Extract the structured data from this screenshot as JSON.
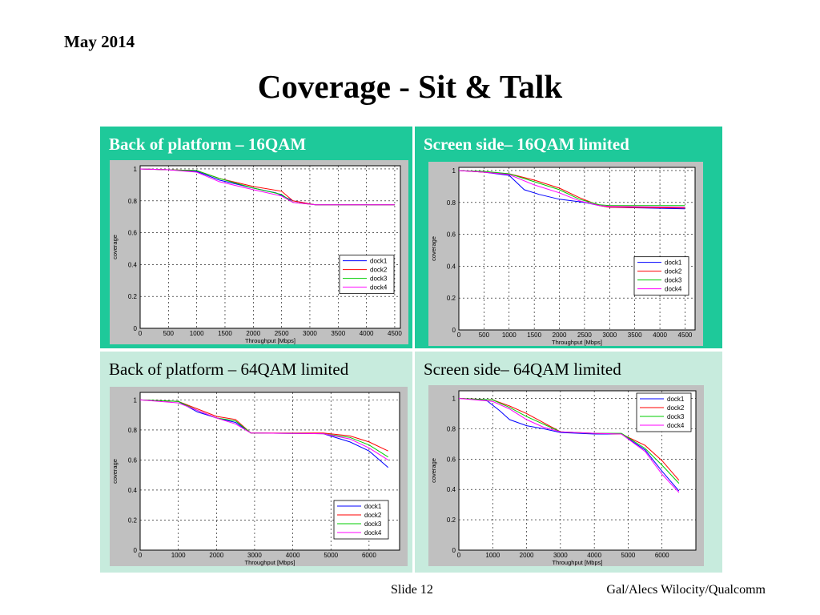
{
  "header": {
    "date": "May 2014",
    "title": "Coverage  - Sit & Talk"
  },
  "footer": {
    "slide": "Slide 12",
    "author": "Gal/Alecs Wilocity/Qualcomm"
  },
  "colors": {
    "panel_dark": "#1ec99a",
    "panel_light": "#c7ebdd",
    "dock1": "#0000ff",
    "dock2": "#ff0000",
    "dock3": "#00cc00",
    "dock4": "#ff00ff"
  },
  "chart_data": [
    {
      "type": "line",
      "panel_label": "Back of platform – 16QAM",
      "xlabel": "Throughput [Mbps]",
      "ylabel": "coverage",
      "xlim": [
        0,
        4600
      ],
      "ylim": [
        0,
        1.02
      ],
      "xticks": [
        0,
        500,
        1000,
        1500,
        2000,
        2500,
        3000,
        3500,
        4000,
        4500
      ],
      "yticks": [
        0,
        0.2,
        0.4,
        0.6,
        0.8,
        1
      ],
      "grid": true,
      "legend": "center-right",
      "series": [
        {
          "name": "dock1",
          "color": "#0000ff",
          "points": [
            [
              0,
              1
            ],
            [
              500,
              0.995
            ],
            [
              1000,
              0.985
            ],
            [
              1400,
              0.93
            ],
            [
              2000,
              0.88
            ],
            [
              2400,
              0.85
            ],
            [
              2700,
              0.8
            ],
            [
              3100,
              0.775
            ],
            [
              4500,
              0.775
            ]
          ]
        },
        {
          "name": "dock2",
          "color": "#ff0000",
          "points": [
            [
              0,
              1
            ],
            [
              500,
              0.995
            ],
            [
              1000,
              0.99
            ],
            [
              1400,
              0.94
            ],
            [
              2000,
              0.89
            ],
            [
              2500,
              0.86
            ],
            [
              2700,
              0.8
            ],
            [
              3100,
              0.775
            ],
            [
              4500,
              0.775
            ]
          ]
        },
        {
          "name": "dock3",
          "color": "#00cc00",
          "points": [
            [
              0,
              1
            ],
            [
              500,
              0.995
            ],
            [
              1000,
              0.99
            ],
            [
              1400,
              0.94
            ],
            [
              2000,
              0.88
            ],
            [
              2500,
              0.84
            ],
            [
              2700,
              0.79
            ],
            [
              3100,
              0.775
            ],
            [
              4500,
              0.775
            ]
          ]
        },
        {
          "name": "dock4",
          "color": "#ff00ff",
          "points": [
            [
              0,
              1
            ],
            [
              500,
              0.995
            ],
            [
              1000,
              0.98
            ],
            [
              1400,
              0.92
            ],
            [
              2000,
              0.87
            ],
            [
              2500,
              0.83
            ],
            [
              2700,
              0.79
            ],
            [
              3100,
              0.775
            ],
            [
              4500,
              0.775
            ]
          ]
        }
      ]
    },
    {
      "type": "line",
      "panel_label": "Screen side– 16QAM limited",
      "xlabel": "Throughput [Mbps]",
      "ylabel": "coverage",
      "xlim": [
        0,
        4700
      ],
      "ylim": [
        0,
        1.02
      ],
      "xticks": [
        0,
        500,
        1000,
        1500,
        2000,
        2500,
        3000,
        3500,
        4000,
        4500
      ],
      "yticks": [
        0,
        0.2,
        0.4,
        0.6,
        0.8,
        1
      ],
      "grid": true,
      "legend": "center-right",
      "series": [
        {
          "name": "dock1",
          "color": "#0000ff",
          "points": [
            [
              0,
              1
            ],
            [
              500,
              0.99
            ],
            [
              1000,
              0.97
            ],
            [
              1300,
              0.88
            ],
            [
              1600,
              0.85
            ],
            [
              2000,
              0.82
            ],
            [
              2500,
              0.8
            ],
            [
              2800,
              0.78
            ],
            [
              3000,
              0.77
            ],
            [
              4500,
              0.76
            ]
          ]
        },
        {
          "name": "dock2",
          "color": "#ff0000",
          "points": [
            [
              0,
              1
            ],
            [
              500,
              0.99
            ],
            [
              1000,
              0.98
            ],
            [
              1500,
              0.94
            ],
            [
              2000,
              0.89
            ],
            [
              2400,
              0.83
            ],
            [
              2800,
              0.78
            ],
            [
              3000,
              0.77
            ],
            [
              4500,
              0.765
            ]
          ]
        },
        {
          "name": "dock3",
          "color": "#00cc00",
          "points": [
            [
              0,
              1
            ],
            [
              500,
              0.995
            ],
            [
              1000,
              0.98
            ],
            [
              1500,
              0.93
            ],
            [
              2000,
              0.88
            ],
            [
              2400,
              0.82
            ],
            [
              2800,
              0.785
            ],
            [
              3000,
              0.78
            ],
            [
              4500,
              0.78
            ]
          ]
        },
        {
          "name": "dock4",
          "color": "#ff00ff",
          "points": [
            [
              0,
              1
            ],
            [
              500,
              0.99
            ],
            [
              1000,
              0.975
            ],
            [
              1500,
              0.91
            ],
            [
              2000,
              0.86
            ],
            [
              2400,
              0.81
            ],
            [
              2800,
              0.78
            ],
            [
              3000,
              0.775
            ],
            [
              4500,
              0.77
            ]
          ]
        }
      ]
    },
    {
      "type": "line",
      "panel_label": "Back of platform – 64QAM limited",
      "xlabel": "Throughput [Mbps]",
      "ylabel": "coverage",
      "xlim": [
        0,
        6800
      ],
      "ylim": [
        0,
        1.05
      ],
      "xticks": [
        0,
        1000,
        2000,
        3000,
        4000,
        5000,
        6000
      ],
      "yticks": [
        0,
        0.2,
        0.4,
        0.6,
        0.8,
        1
      ],
      "grid": true,
      "legend": "bottom-right",
      "series": [
        {
          "name": "dock1",
          "color": "#0000ff",
          "points": [
            [
              0,
              1
            ],
            [
              1000,
              0.99
            ],
            [
              1500,
              0.92
            ],
            [
              2000,
              0.88
            ],
            [
              2500,
              0.85
            ],
            [
              2900,
              0.78
            ],
            [
              4800,
              0.775
            ],
            [
              5500,
              0.72
            ],
            [
              6000,
              0.66
            ],
            [
              6500,
              0.55
            ]
          ]
        },
        {
          "name": "dock2",
          "color": "#ff0000",
          "points": [
            [
              0,
              1
            ],
            [
              1000,
              0.99
            ],
            [
              1500,
              0.94
            ],
            [
              2000,
              0.89
            ],
            [
              2500,
              0.87
            ],
            [
              2900,
              0.78
            ],
            [
              4800,
              0.78
            ],
            [
              5500,
              0.76
            ],
            [
              6000,
              0.72
            ],
            [
              6500,
              0.66
            ]
          ]
        },
        {
          "name": "dock3",
          "color": "#00cc00",
          "points": [
            [
              0,
              1
            ],
            [
              1000,
              0.99
            ],
            [
              1500,
              0.93
            ],
            [
              2000,
              0.88
            ],
            [
              2500,
              0.86
            ],
            [
              2900,
              0.78
            ],
            [
              4800,
              0.775
            ],
            [
              5500,
              0.75
            ],
            [
              6000,
              0.7
            ],
            [
              6500,
              0.62
            ]
          ]
        },
        {
          "name": "dock4",
          "color": "#ff00ff",
          "points": [
            [
              0,
              1
            ],
            [
              1000,
              0.98
            ],
            [
              1500,
              0.93
            ],
            [
              2000,
              0.88
            ],
            [
              2500,
              0.84
            ],
            [
              2900,
              0.78
            ],
            [
              4800,
              0.775
            ],
            [
              5500,
              0.74
            ],
            [
              6000,
              0.68
            ],
            [
              6500,
              0.6
            ]
          ]
        }
      ]
    },
    {
      "type": "line",
      "panel_label": "Screen side– 64QAM limited",
      "xlabel": "Throughput [Mbps]",
      "ylabel": "coverage",
      "xlim": [
        0,
        7000
      ],
      "ylim": [
        0,
        1.05
      ],
      "xticks": [
        0,
        1000,
        2000,
        3000,
        4000,
        5000,
        6000
      ],
      "yticks": [
        0,
        0.2,
        0.4,
        0.6,
        0.8,
        1
      ],
      "grid": true,
      "legend": "top-right",
      "series": [
        {
          "name": "dock1",
          "color": "#0000ff",
          "points": [
            [
              0,
              1
            ],
            [
              800,
              0.99
            ],
            [
              1200,
              0.92
            ],
            [
              1500,
              0.86
            ],
            [
              2000,
              0.82
            ],
            [
              2500,
              0.8
            ],
            [
              3000,
              0.775
            ],
            [
              4000,
              0.765
            ],
            [
              4800,
              0.765
            ],
            [
              5500,
              0.66
            ],
            [
              6000,
              0.52
            ],
            [
              6500,
              0.39
            ]
          ]
        },
        {
          "name": "dock2",
          "color": "#ff0000",
          "points": [
            [
              0,
              1
            ],
            [
              1000,
              0.99
            ],
            [
              1500,
              0.95
            ],
            [
              2000,
              0.9
            ],
            [
              2500,
              0.84
            ],
            [
              3000,
              0.78
            ],
            [
              4000,
              0.77
            ],
            [
              4800,
              0.765
            ],
            [
              5500,
              0.69
            ],
            [
              6000,
              0.59
            ],
            [
              6500,
              0.46
            ]
          ]
        },
        {
          "name": "dock3",
          "color": "#00cc00",
          "points": [
            [
              0,
              1
            ],
            [
              1000,
              0.99
            ],
            [
              1500,
              0.94
            ],
            [
              2000,
              0.88
            ],
            [
              2500,
              0.83
            ],
            [
              3000,
              0.78
            ],
            [
              4000,
              0.77
            ],
            [
              4800,
              0.77
            ],
            [
              5500,
              0.67
            ],
            [
              6000,
              0.56
            ],
            [
              6500,
              0.44
            ]
          ]
        },
        {
          "name": "dock4",
          "color": "#ff00ff",
          "points": [
            [
              0,
              1
            ],
            [
              1000,
              0.98
            ],
            [
              1500,
              0.93
            ],
            [
              2000,
              0.86
            ],
            [
              2500,
              0.81
            ],
            [
              3000,
              0.78
            ],
            [
              4000,
              0.77
            ],
            [
              4800,
              0.765
            ],
            [
              5500,
              0.65
            ],
            [
              6000,
              0.5
            ],
            [
              6500,
              0.38
            ]
          ]
        }
      ]
    }
  ]
}
